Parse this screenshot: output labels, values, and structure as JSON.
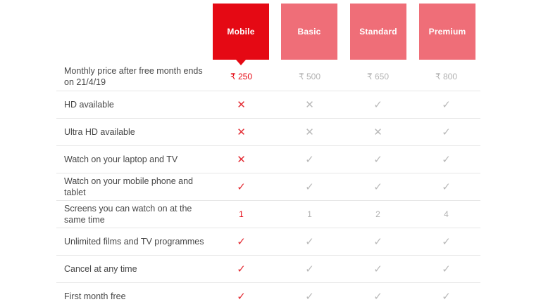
{
  "colors": {
    "selected_plan": "#e50914",
    "unselected_plan": "#ef6e78",
    "accent_red": "#e50914",
    "muted_value_gray": "#b2b2b2",
    "label_gray": "#474747",
    "divider": "#e7e7e7",
    "background": "#ffffff"
  },
  "plans": [
    {
      "name": "Mobile",
      "selected": true
    },
    {
      "name": "Basic",
      "selected": false
    },
    {
      "name": "Standard",
      "selected": false
    },
    {
      "name": "Premium",
      "selected": false
    }
  ],
  "table": {
    "rows": [
      {
        "label": "Monthly price after free month ends on 21/4/19",
        "values": [
          "₹ 250",
          "₹ 500",
          "₹ 650",
          "₹ 800"
        ]
      },
      {
        "label": "HD available",
        "values": [
          "✕",
          "✕",
          "✓",
          "✓"
        ]
      },
      {
        "label": "Ultra HD available",
        "values": [
          "✕",
          "✕",
          "✕",
          "✓"
        ]
      },
      {
        "label": "Watch on your laptop and TV",
        "values": [
          "✕",
          "✓",
          "✓",
          "✓"
        ]
      },
      {
        "label": "Watch on your mobile phone and tablet",
        "values": [
          "✓",
          "✓",
          "✓",
          "✓"
        ]
      },
      {
        "label": "Screens you can watch on at the same time",
        "values": [
          "1",
          "1",
          "2",
          "4"
        ]
      },
      {
        "label": "Unlimited films and TV programmes",
        "values": [
          "✓",
          "✓",
          "✓",
          "✓"
        ]
      },
      {
        "label": "Cancel at any time",
        "values": [
          "✓",
          "✓",
          "✓",
          "✓"
        ]
      },
      {
        "label": "First month free",
        "values": [
          "✓",
          "✓",
          "✓",
          "✓"
        ]
      }
    ]
  }
}
